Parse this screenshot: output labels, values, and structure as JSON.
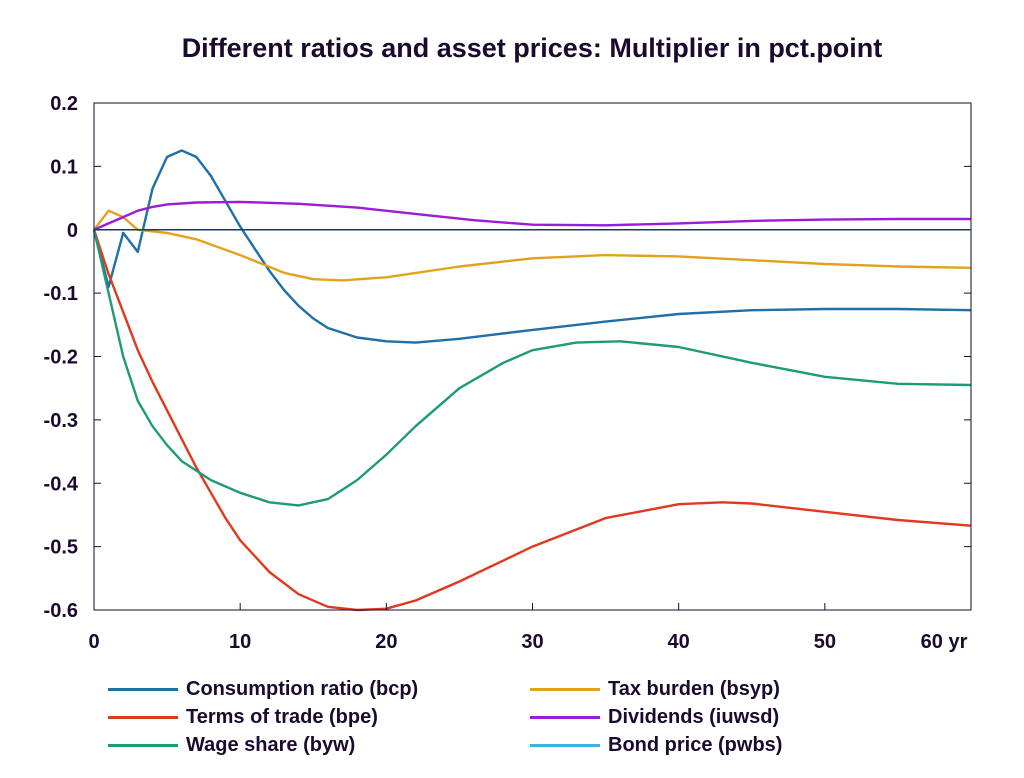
{
  "chart_data": {
    "type": "line",
    "title": "Different ratios and asset prices: Multiplier in pct.point",
    "xlabel": "",
    "ylabel": "",
    "x_unit_label": "60 yr",
    "xlim": [
      0,
      60
    ],
    "ylim": [
      -0.6,
      0.2
    ],
    "x_ticks": [
      0,
      10,
      20,
      30,
      40,
      50,
      60
    ],
    "x_tick_labels": [
      "0",
      "10",
      "20",
      "30",
      "40",
      "50",
      "60 yr"
    ],
    "y_ticks": [
      0.2,
      0.1,
      0,
      -0.1,
      -0.2,
      -0.3,
      -0.4,
      -0.5,
      -0.6
    ],
    "y_tick_labels": [
      "0.2",
      "0.1",
      "0",
      "-0.1",
      "-0.2",
      "-0.3",
      "-0.4",
      "-0.5",
      "-0.6"
    ],
    "grid": false,
    "legend_position": "bottom",
    "series": [
      {
        "name": "Consumption ratio (bcp)",
        "color": "#1f6fa8",
        "points": [
          [
            0,
            0
          ],
          [
            1,
            -0.09
          ],
          [
            2,
            -0.005
          ],
          [
            3,
            -0.035
          ],
          [
            4,
            0.065
          ],
          [
            5,
            0.115
          ],
          [
            6,
            0.125
          ],
          [
            7,
            0.115
          ],
          [
            8,
            0.085
          ],
          [
            9,
            0.045
          ],
          [
            10,
            0.005
          ],
          [
            11,
            -0.03
          ],
          [
            12,
            -0.065
          ],
          [
            13,
            -0.095
          ],
          [
            14,
            -0.12
          ],
          [
            15,
            -0.14
          ],
          [
            16,
            -0.155
          ],
          [
            18,
            -0.17
          ],
          [
            20,
            -0.176
          ],
          [
            22,
            -0.178
          ],
          [
            25,
            -0.172
          ],
          [
            30,
            -0.158
          ],
          [
            35,
            -0.145
          ],
          [
            40,
            -0.133
          ],
          [
            45,
            -0.127
          ],
          [
            50,
            -0.125
          ],
          [
            55,
            -0.125
          ],
          [
            60,
            -0.127
          ]
        ]
      },
      {
        "name": "Terms of trade (bpe)",
        "color": "#e03a1e",
        "points": [
          [
            0,
            0
          ],
          [
            1,
            -0.07
          ],
          [
            2,
            -0.13
          ],
          [
            3,
            -0.19
          ],
          [
            4,
            -0.24
          ],
          [
            5,
            -0.285
          ],
          [
            6,
            -0.33
          ],
          [
            7,
            -0.375
          ],
          [
            8,
            -0.415
          ],
          [
            9,
            -0.455
          ],
          [
            10,
            -0.49
          ],
          [
            12,
            -0.54
          ],
          [
            14,
            -0.575
          ],
          [
            16,
            -0.595
          ],
          [
            18,
            -0.6
          ],
          [
            20,
            -0.598
          ],
          [
            22,
            -0.585
          ],
          [
            25,
            -0.555
          ],
          [
            30,
            -0.5
          ],
          [
            35,
            -0.455
          ],
          [
            40,
            -0.433
          ],
          [
            43,
            -0.43
          ],
          [
            45,
            -0.432
          ],
          [
            50,
            -0.445
          ],
          [
            55,
            -0.458
          ],
          [
            60,
            -0.467
          ]
        ]
      },
      {
        "name": "Wage share (byw)",
        "color": "#1f9a78",
        "points": [
          [
            0,
            0
          ],
          [
            1,
            -0.1
          ],
          [
            2,
            -0.2
          ],
          [
            3,
            -0.27
          ],
          [
            4,
            -0.31
          ],
          [
            5,
            -0.34
          ],
          [
            6,
            -0.365
          ],
          [
            8,
            -0.395
          ],
          [
            10,
            -0.415
          ],
          [
            12,
            -0.43
          ],
          [
            14,
            -0.435
          ],
          [
            16,
            -0.425
          ],
          [
            18,
            -0.395
          ],
          [
            20,
            -0.355
          ],
          [
            22,
            -0.31
          ],
          [
            25,
            -0.25
          ],
          [
            28,
            -0.21
          ],
          [
            30,
            -0.19
          ],
          [
            33,
            -0.178
          ],
          [
            36,
            -0.176
          ],
          [
            40,
            -0.185
          ],
          [
            45,
            -0.21
          ],
          [
            50,
            -0.232
          ],
          [
            55,
            -0.243
          ],
          [
            60,
            -0.245
          ]
        ]
      },
      {
        "name": "Tax burden (bsyp)",
        "color": "#e3a21c",
        "points": [
          [
            0,
            0
          ],
          [
            1,
            0.03
          ],
          [
            2,
            0.02
          ],
          [
            3,
            0
          ],
          [
            5,
            -0.005
          ],
          [
            7,
            -0.015
          ],
          [
            10,
            -0.04
          ],
          [
            13,
            -0.068
          ],
          [
            15,
            -0.078
          ],
          [
            17,
            -0.08
          ],
          [
            20,
            -0.075
          ],
          [
            25,
            -0.058
          ],
          [
            30,
            -0.045
          ],
          [
            35,
            -0.04
          ],
          [
            40,
            -0.042
          ],
          [
            45,
            -0.048
          ],
          [
            50,
            -0.054
          ],
          [
            55,
            -0.058
          ],
          [
            60,
            -0.06
          ]
        ]
      },
      {
        "name": "Dividends (iuwsd)",
        "color": "#9b1bd6",
        "points": [
          [
            0,
            0
          ],
          [
            1,
            0.01
          ],
          [
            2,
            0.02
          ],
          [
            3,
            0.03
          ],
          [
            4,
            0.036
          ],
          [
            5,
            0.04
          ],
          [
            7,
            0.043
          ],
          [
            10,
            0.044
          ],
          [
            14,
            0.041
          ],
          [
            18,
            0.035
          ],
          [
            22,
            0.025
          ],
          [
            26,
            0.015
          ],
          [
            30,
            0.008
          ],
          [
            35,
            0.007
          ],
          [
            40,
            0.01
          ],
          [
            45,
            0.014
          ],
          [
            50,
            0.016
          ],
          [
            55,
            0.017
          ],
          [
            60,
            0.017
          ]
        ]
      },
      {
        "name": "Bond price (pwbs)",
        "color": "#3fb0e3",
        "points": []
      }
    ]
  }
}
